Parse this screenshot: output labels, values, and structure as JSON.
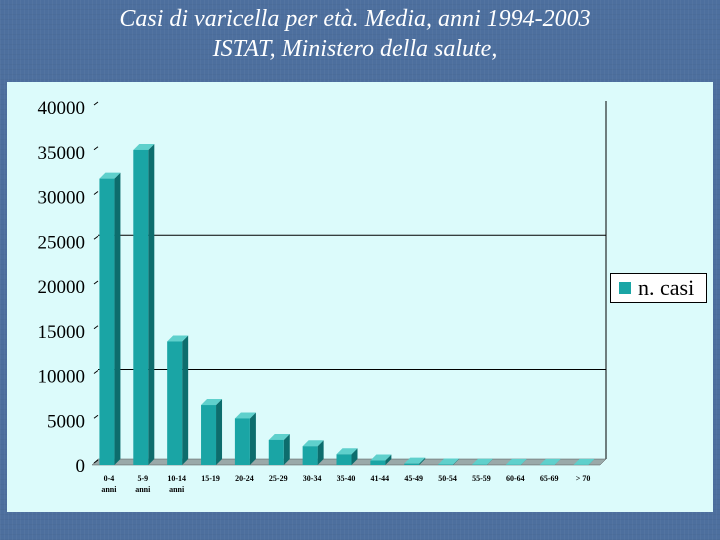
{
  "title": {
    "line1": "Casi di varicella per età. Media, anni 1994-2003",
    "line2": "ISTAT, Ministero della salute,"
  },
  "colors": {
    "background": "#4d6f9e",
    "panel": "#dcfbfb",
    "bar_front": "#1aa5a5",
    "bar_side": "#0d6d6d",
    "bar_top": "#5fd0cc"
  },
  "chart_data": {
    "type": "bar",
    "categories": [
      [
        "0-4",
        "anni"
      ],
      [
        "5-9",
        "anni"
      ],
      [
        "10-14",
        "anni"
      ],
      [
        "15-19"
      ],
      [
        "20-24"
      ],
      [
        "25-29"
      ],
      [
        "30-34"
      ],
      [
        "35-40"
      ],
      [
        "41-44"
      ],
      [
        "45-49"
      ],
      [
        "50-54"
      ],
      [
        "55-59"
      ],
      [
        "60-64"
      ],
      [
        "65-69"
      ],
      [
        "> 70"
      ]
    ],
    "series": [
      {
        "name": "n. casi",
        "values": [
          32000,
          35200,
          13800,
          6700,
          5200,
          2800,
          2100,
          1200,
          500,
          150,
          50,
          30,
          20,
          15,
          10
        ]
      }
    ],
    "ylim": [
      0,
      40000
    ],
    "yticks": [
      "0",
      "5000",
      "10000",
      "15000",
      "20000",
      "25000",
      "30000",
      "35000",
      "40000"
    ],
    "gridlines": [
      10000,
      25000
    ],
    "legend": "right",
    "style": "3d"
  }
}
